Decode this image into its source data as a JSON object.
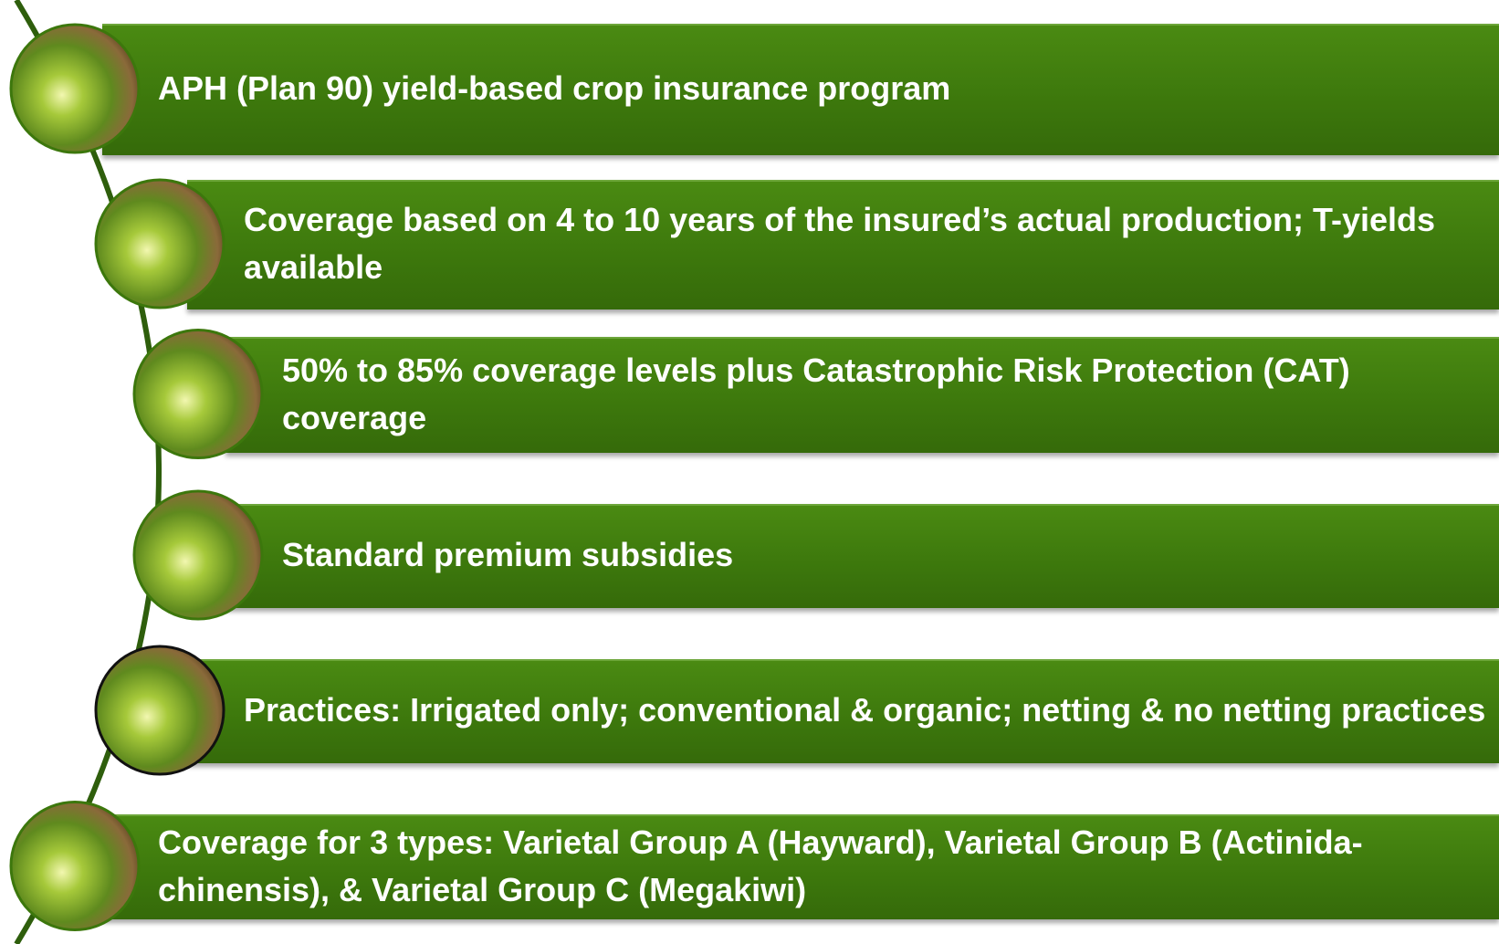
{
  "items": [
    {
      "text": "APH (Plan 90) yield-based crop insurance program"
    },
    {
      "text": "Coverage based on 4 to 10 years of the insured’s actual production; T-yields available"
    },
    {
      "text": "50% to 85% coverage levels plus Catastrophic Risk Protection (CAT) coverage"
    },
    {
      "text": "Standard premium subsidies"
    },
    {
      "text": "Practices: Irrigated only; conventional & organic; netting & no netting practices"
    },
    {
      "text": "Coverage for 3 types: Varietal Group A (Hayward), Varietal Group B (Actinida-chinensis), & Varietal Group C (Megakiwi)"
    }
  ]
}
